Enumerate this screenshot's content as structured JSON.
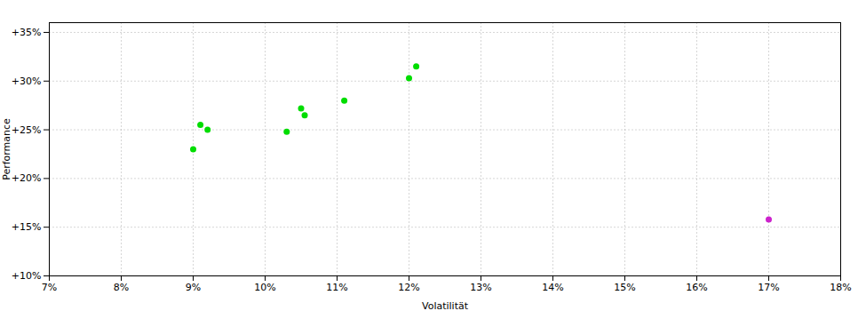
{
  "chart_data": {
    "type": "scatter",
    "xlabel": "Volatilität",
    "ylabel": "Performance",
    "series": [
      {
        "color": "#00dd00",
        "x": [
          9.0,
          9.1,
          9.2,
          10.3,
          10.5,
          10.55,
          11.1,
          12.0,
          12.1
        ],
        "values": [
          23.0,
          25.5,
          25.0,
          24.8,
          27.2,
          26.5,
          28.0,
          30.3,
          31.5
        ]
      },
      {
        "color": "#cc22cc",
        "x": [
          17.0
        ],
        "values": [
          15.8
        ]
      }
    ],
    "xlim": [
      7,
      18
    ],
    "ylim": [
      10,
      36
    ],
    "xticks": [
      {
        "value": 7,
        "label": "7%"
      },
      {
        "value": 8,
        "label": "8%"
      },
      {
        "value": 9,
        "label": "9%"
      },
      {
        "value": 10,
        "label": "10%"
      },
      {
        "value": 11,
        "label": "11%"
      },
      {
        "value": 12,
        "label": "12%"
      },
      {
        "value": 13,
        "label": "13%"
      },
      {
        "value": 14,
        "label": "14%"
      },
      {
        "value": 15,
        "label": "15%"
      },
      {
        "value": 16,
        "label": "16%"
      },
      {
        "value": 17,
        "label": "17%"
      },
      {
        "value": 18,
        "label": "18%"
      }
    ],
    "yticks": [
      {
        "value": 10,
        "label": "+10%"
      },
      {
        "value": 15,
        "label": "+15%"
      },
      {
        "value": 20,
        "label": "+20%"
      },
      {
        "value": 25,
        "label": "+25%"
      },
      {
        "value": 30,
        "label": "+30%"
      },
      {
        "value": 35,
        "label": "+35%"
      }
    ],
    "grid": true
  }
}
